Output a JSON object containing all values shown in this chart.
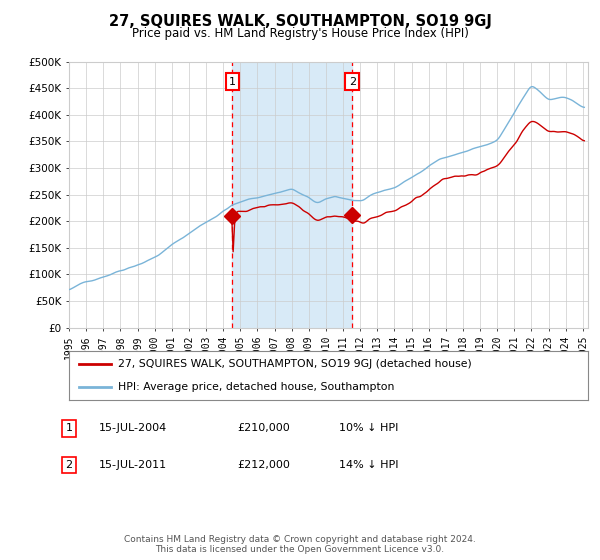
{
  "title": "27, SQUIRES WALK, SOUTHAMPTON, SO19 9GJ",
  "subtitle": "Price paid vs. HM Land Registry's House Price Index (HPI)",
  "hpi_label": "HPI: Average price, detached house, Southampton",
  "property_label": "27, SQUIRES WALK, SOUTHAMPTON, SO19 9GJ (detached house)",
  "footer": "Contains HM Land Registry data © Crown copyright and database right 2024.\nThis data is licensed under the Open Government Licence v3.0.",
  "annotation1": {
    "num": "1",
    "date": "15-JUL-2004",
    "price": "£210,000",
    "pct": "10% ↓ HPI"
  },
  "annotation2": {
    "num": "2",
    "date": "15-JUL-2011",
    "price": "£212,000",
    "pct": "14% ↓ HPI"
  },
  "hpi_color": "#7ab4d8",
  "property_color": "#cc0000",
  "background_color": "#ffffff",
  "plot_bg_color": "#ffffff",
  "shaded_region_color": "#d8eaf7",
  "grid_color": "#cccccc",
  "ylim": [
    0,
    500000
  ],
  "yticks": [
    0,
    50000,
    100000,
    150000,
    200000,
    250000,
    300000,
    350000,
    400000,
    450000,
    500000
  ],
  "sale1_year": 2004.54,
  "sale1_value": 210000,
  "sale2_year": 2011.54,
  "sale2_value": 212000,
  "vline1_year": 2004.54,
  "vline2_year": 2011.54
}
